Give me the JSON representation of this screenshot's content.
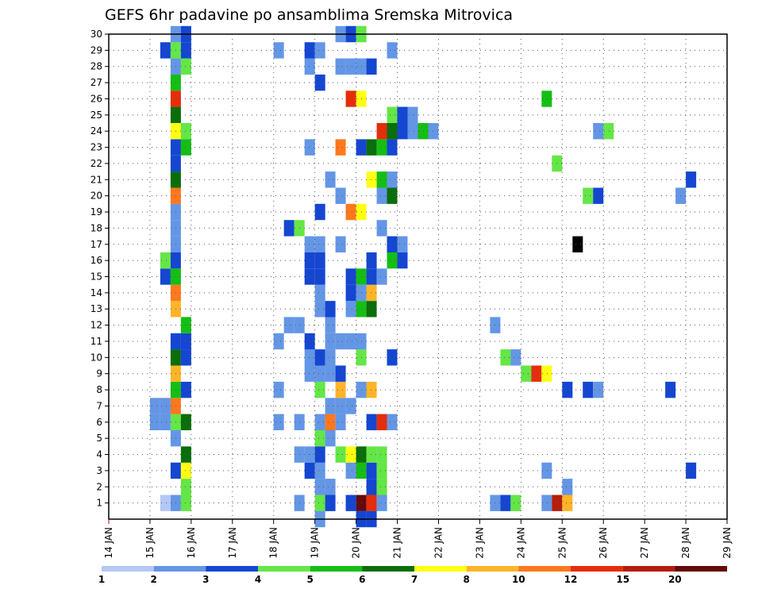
{
  "chart_data": {
    "type": "heatmap",
    "title": "GEFS 6hr padavine po ansamblima Sremska Mitrovica",
    "xlabel": "",
    "ylabel": "",
    "x_ticks": [
      "14 JAN",
      "15 JAN",
      "16 JAN",
      "17 JAN",
      "18 JAN",
      "19 JAN",
      "20 JAN",
      "21 JAN",
      "22 JAN",
      "23 JAN",
      "24 JAN",
      "25 JAN",
      "26 JAN",
      "27 JAN",
      "28 JAN",
      "29 JAN"
    ],
    "x_range_days": [
      14,
      29
    ],
    "y_ticks": [
      1,
      2,
      3,
      4,
      5,
      6,
      7,
      8,
      9,
      10,
      11,
      12,
      13,
      14,
      15,
      16,
      17,
      18,
      19,
      20,
      21,
      22,
      23,
      24,
      25,
      26,
      27,
      28,
      29,
      30
    ],
    "y_range": [
      0,
      30
    ],
    "grid": true,
    "legend": {
      "position": "bottom",
      "thresholds": [
        "1",
        "2",
        "3",
        "4",
        "5",
        "6",
        "7",
        "8",
        "10",
        "12",
        "15",
        "20"
      ],
      "colors": [
        "#b4c8f5",
        "#6496e6",
        "#1446d2",
        "#64e646",
        "#14be14",
        "#0a6e0a",
        "#ffff14",
        "#ffb428",
        "#ff781e",
        "#e62d0a",
        "#b41e0a",
        "#640a0a"
      ]
    },
    "cell_unit_days": 0.25,
    "cells": [
      [
        15.5,
        1,
        1
      ],
      [
        15.75,
        1,
        3
      ],
      [
        15.75,
        2,
        3
      ],
      [
        15.5,
        3,
        2
      ],
      [
        15.75,
        3,
        6
      ],
      [
        15.75,
        4,
        5
      ],
      [
        15.5,
        5,
        1
      ],
      [
        15.5,
        6,
        3
      ],
      [
        15.75,
        6,
        5
      ],
      [
        15.5,
        7,
        8
      ],
      [
        15.5,
        8,
        4
      ],
      [
        15.75,
        8,
        2
      ],
      [
        15.5,
        9,
        7
      ],
      [
        15.5,
        10,
        5
      ],
      [
        15.75,
        10,
        2
      ],
      [
        15.5,
        11,
        2
      ],
      [
        15.75,
        11,
        2
      ],
      [
        15.75,
        12,
        4
      ],
      [
        15.5,
        13,
        7
      ],
      [
        15.5,
        14,
        8
      ],
      [
        15.25,
        15,
        2
      ],
      [
        15.5,
        15,
        4
      ],
      [
        15.25,
        16,
        3
      ],
      [
        15.5,
        16,
        2
      ],
      [
        15.5,
        17,
        1
      ],
      [
        15.5,
        18,
        1
      ],
      [
        15.5,
        19,
        1
      ],
      [
        15.5,
        20,
        8
      ],
      [
        15.5,
        21,
        5
      ],
      [
        15.5,
        22,
        2
      ],
      [
        15.5,
        23,
        2
      ],
      [
        15.75,
        23,
        4
      ],
      [
        15.5,
        24,
        6
      ],
      [
        15.75,
        24,
        3
      ],
      [
        15.5,
        25,
        5
      ],
      [
        15.5,
        26,
        9
      ],
      [
        15.5,
        27,
        4
      ],
      [
        15.5,
        28,
        1
      ],
      [
        15.75,
        28,
        3
      ],
      [
        15.25,
        29,
        2
      ],
      [
        15.5,
        29,
        3
      ],
      [
        15.75,
        29,
        2
      ],
      [
        15.5,
        30,
        1
      ],
      [
        15.75,
        30,
        2
      ],
      [
        15.0,
        6,
        1
      ],
      [
        15.25,
        6,
        1
      ],
      [
        15.0,
        7,
        1
      ],
      [
        15.25,
        7,
        1
      ],
      [
        15.25,
        1,
        0
      ],
      [
        18.5,
        1,
        1
      ],
      [
        19.0,
        1,
        3
      ],
      [
        19.25,
        1,
        2
      ],
      [
        19.75,
        1,
        2
      ],
      [
        20.0,
        1,
        11
      ],
      [
        20.25,
        1,
        9
      ],
      [
        20.5,
        1,
        1
      ],
      [
        19.0,
        2,
        1
      ],
      [
        19.25,
        2,
        1
      ],
      [
        20.25,
        2,
        2
      ],
      [
        20.5,
        2,
        3
      ],
      [
        18.75,
        3,
        2
      ],
      [
        19.0,
        3,
        1
      ],
      [
        19.75,
        3,
        1
      ],
      [
        20.0,
        3,
        4
      ],
      [
        20.25,
        3,
        2
      ],
      [
        20.5,
        3,
        3
      ],
      [
        18.5,
        4,
        1
      ],
      [
        18.75,
        4,
        1
      ],
      [
        19.0,
        4,
        2
      ],
      [
        19.5,
        4,
        3
      ],
      [
        19.75,
        4,
        6
      ],
      [
        20.0,
        4,
        5
      ],
      [
        20.25,
        4,
        3
      ],
      [
        20.5,
        4,
        3
      ],
      [
        19.0,
        5,
        3
      ],
      [
        19.25,
        5,
        1
      ],
      [
        18.0,
        6,
        1
      ],
      [
        18.5,
        6,
        1
      ],
      [
        19.0,
        6,
        1
      ],
      [
        19.25,
        6,
        8
      ],
      [
        19.5,
        6,
        1
      ],
      [
        20.25,
        6,
        2
      ],
      [
        20.5,
        6,
        9
      ],
      [
        20.75,
        6,
        1
      ],
      [
        19.25,
        7,
        1
      ],
      [
        19.5,
        7,
        1
      ],
      [
        19.75,
        7,
        1
      ],
      [
        18.0,
        8,
        1
      ],
      [
        19.0,
        8,
        3
      ],
      [
        19.5,
        8,
        7
      ],
      [
        20.0,
        8,
        1
      ],
      [
        20.25,
        8,
        7
      ],
      [
        18.75,
        9,
        1
      ],
      [
        19.0,
        9,
        1
      ],
      [
        19.25,
        9,
        1
      ],
      [
        19.5,
        9,
        2
      ],
      [
        18.75,
        10,
        1
      ],
      [
        19.0,
        10,
        2
      ],
      [
        19.25,
        10,
        1
      ],
      [
        20.0,
        10,
        3
      ],
      [
        20.75,
        10,
        2
      ],
      [
        18.0,
        11,
        1
      ],
      [
        18.75,
        11,
        2
      ],
      [
        19.25,
        11,
        1
      ],
      [
        19.5,
        11,
        1
      ],
      [
        19.75,
        11,
        1
      ],
      [
        20.0,
        11,
        1
      ],
      [
        18.25,
        12,
        1
      ],
      [
        18.5,
        12,
        1
      ],
      [
        19.25,
        12,
        1
      ],
      [
        19.0,
        13,
        1
      ],
      [
        19.25,
        13,
        2
      ],
      [
        19.75,
        13,
        1
      ],
      [
        20.0,
        13,
        4
      ],
      [
        20.25,
        13,
        5
      ],
      [
        19.0,
        14,
        1
      ],
      [
        19.75,
        14,
        2
      ],
      [
        20.0,
        14,
        1
      ],
      [
        20.25,
        14,
        7
      ],
      [
        18.75,
        15,
        2
      ],
      [
        19.0,
        15,
        2
      ],
      [
        19.75,
        15,
        2
      ],
      [
        20.0,
        15,
        4
      ],
      [
        20.25,
        15,
        2
      ],
      [
        20.5,
        15,
        1
      ],
      [
        18.75,
        16,
        2
      ],
      [
        19.0,
        16,
        2
      ],
      [
        20.25,
        16,
        2
      ],
      [
        20.75,
        16,
        4
      ],
      [
        21.0,
        16,
        2
      ],
      [
        18.75,
        17,
        1
      ],
      [
        19.0,
        17,
        1
      ],
      [
        19.5,
        17,
        1
      ],
      [
        20.75,
        17,
        2
      ],
      [
        21.0,
        17,
        1
      ],
      [
        18.25,
        18,
        2
      ],
      [
        18.5,
        18,
        3
      ],
      [
        20.5,
        18,
        1
      ],
      [
        19.0,
        19,
        2
      ],
      [
        19.75,
        19,
        8
      ],
      [
        20.0,
        19,
        6
      ],
      [
        19.5,
        20,
        1
      ],
      [
        20.5,
        20,
        1
      ],
      [
        20.75,
        20,
        5
      ],
      [
        19.25,
        21,
        1
      ],
      [
        20.25,
        21,
        6
      ],
      [
        20.5,
        21,
        4
      ],
      [
        20.75,
        21,
        1
      ],
      [
        18.75,
        23,
        1
      ],
      [
        19.5,
        23,
        8
      ],
      [
        20.0,
        23,
        2
      ],
      [
        20.25,
        23,
        5
      ],
      [
        20.5,
        23,
        4
      ],
      [
        20.75,
        23,
        2
      ],
      [
        20.5,
        24,
        9
      ],
      [
        20.75,
        24,
        5
      ],
      [
        21.0,
        24,
        2
      ],
      [
        21.25,
        24,
        1
      ],
      [
        21.5,
        24,
        4
      ],
      [
        21.75,
        24,
        1
      ],
      [
        20.75,
        25,
        3
      ],
      [
        21.0,
        25,
        2
      ],
      [
        21.25,
        25,
        1
      ],
      [
        19.75,
        26,
        9
      ],
      [
        20.0,
        26,
        6
      ],
      [
        19.0,
        27,
        2
      ],
      [
        18.75,
        28,
        1
      ],
      [
        19.5,
        28,
        1
      ],
      [
        19.75,
        28,
        1
      ],
      [
        20.0,
        28,
        1
      ],
      [
        20.25,
        28,
        2
      ],
      [
        18.0,
        29,
        1
      ],
      [
        18.75,
        29,
        2
      ],
      [
        19.0,
        29,
        1
      ],
      [
        20.75,
        29,
        1
      ],
      [
        19.5,
        30,
        1
      ],
      [
        19.75,
        30,
        2
      ],
      [
        20.0,
        30,
        3
      ],
      [
        20.0,
        0,
        2
      ],
      [
        20.25,
        0,
        2
      ],
      [
        19.0,
        0,
        1
      ],
      [
        23.25,
        1,
        1
      ],
      [
        23.5,
        1,
        2
      ],
      [
        23.75,
        1,
        3
      ],
      [
        24.5,
        1,
        1
      ],
      [
        24.75,
        1,
        10
      ],
      [
        25.0,
        1,
        7
      ],
      [
        25.0,
        2,
        1
      ],
      [
        24.5,
        3,
        1
      ],
      [
        25.0,
        8,
        2
      ],
      [
        25.5,
        8,
        2
      ],
      [
        25.75,
        8,
        1
      ],
      [
        27.5,
        8,
        2
      ],
      [
        24.0,
        9,
        3
      ],
      [
        24.25,
        9,
        9
      ],
      [
        24.5,
        9,
        6
      ],
      [
        23.5,
        10,
        3
      ],
      [
        23.75,
        10,
        1
      ],
      [
        23.25,
        12,
        1
      ],
      [
        24.5,
        26,
        4
      ],
      [
        24.75,
        22,
        3
      ],
      [
        25.25,
        17,
        12
      ],
      [
        25.5,
        20,
        3
      ],
      [
        25.75,
        20,
        2
      ],
      [
        27.75,
        20,
        1
      ],
      [
        25.75,
        24,
        1
      ],
      [
        26.0,
        24,
        3
      ],
      [
        28.0,
        21,
        2
      ],
      [
        28.0,
        3,
        2
      ]
    ]
  }
}
